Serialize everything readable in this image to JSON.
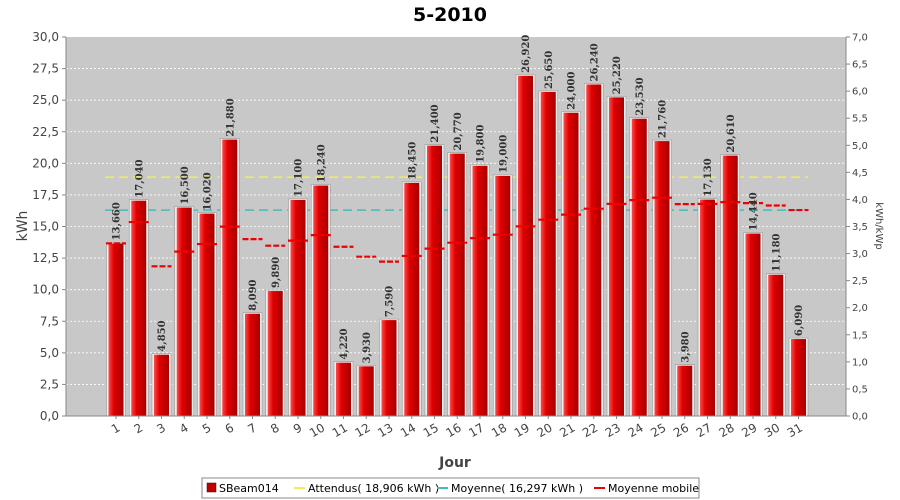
{
  "chart_data": {
    "type": "bar",
    "title": "5-2010",
    "xlabel": "Jour",
    "ylabel": "kWh",
    "ylabel_right": "kWh/kWp",
    "ylim": [
      0,
      30
    ],
    "ylim_right": [
      0,
      7.0
    ],
    "yticks": [
      "0,0",
      "2,5",
      "5,0",
      "7,5",
      "10,0",
      "12,5",
      "15,0",
      "17,5",
      "20,0",
      "22,5",
      "25,0",
      "27,5",
      "30,0"
    ],
    "yticks_right": [
      "0,0",
      "0,5",
      "1,0",
      "1,5",
      "2,0",
      "2,5",
      "3,0",
      "3,5",
      "4,0",
      "4,5",
      "5,0",
      "5,5",
      "6,0",
      "6,5",
      "7,0"
    ],
    "grid": true,
    "legend_position": "bottom",
    "categories": [
      "1",
      "2",
      "3",
      "4",
      "5",
      "6",
      "7",
      "8",
      "9",
      "10",
      "11",
      "12",
      "13",
      "14",
      "15",
      "16",
      "17",
      "18",
      "19",
      "20",
      "21",
      "22",
      "23",
      "24",
      "25",
      "26",
      "27",
      "28",
      "29",
      "30",
      "31"
    ],
    "series": [
      {
        "name": "SBeam014",
        "type": "bar",
        "color": "#e00000",
        "values": [
          13.66,
          17.04,
          4.85,
          16.5,
          16.02,
          21.88,
          8.09,
          9.89,
          17.1,
          18.24,
          4.22,
          3.93,
          7.59,
          18.45,
          21.4,
          20.77,
          19.8,
          19.0,
          26.92,
          25.65,
          24.0,
          26.24,
          25.22,
          23.53,
          21.76,
          3.98,
          17.13,
          20.61,
          14.44,
          11.18,
          6.09
        ],
        "labels": [
          "13,660",
          "17,040",
          "4,850",
          "16,500",
          "16,020",
          "21,880",
          "8,090",
          "9,890",
          "17,100",
          "18,240",
          "4,220",
          "3,930",
          "7,590",
          "18,450",
          "21,400",
          "20,770",
          "19,800",
          "19,000",
          "26,920",
          "25,650",
          "24,000",
          "26,240",
          "25,220",
          "23,530",
          "21,760",
          "3,980",
          "17,130",
          "20,610",
          "14,440",
          "11,180",
          "6,090"
        ]
      },
      {
        "name": "Attendus( 18,906 kWh )",
        "type": "hline",
        "color": "#eeee55",
        "value": 18.906
      },
      {
        "name": "Moyenne( 16,297 kWh )",
        "type": "hline",
        "color": "#44bbbb",
        "value": 16.297
      },
      {
        "name": "Moyenne mobile",
        "type": "step",
        "color": "#ee0000",
        "values": [
          13.66,
          15.35,
          11.85,
          13.01,
          13.61,
          14.99,
          14.0,
          13.48,
          13.88,
          14.32,
          13.4,
          12.61,
          12.22,
          12.67,
          13.25,
          13.72,
          14.08,
          14.35,
          15.01,
          15.54,
          15.94,
          16.41,
          16.79,
          17.09,
          17.28,
          16.77,
          16.79,
          16.93,
          16.85,
          16.66,
          16.3
        ]
      }
    ]
  }
}
